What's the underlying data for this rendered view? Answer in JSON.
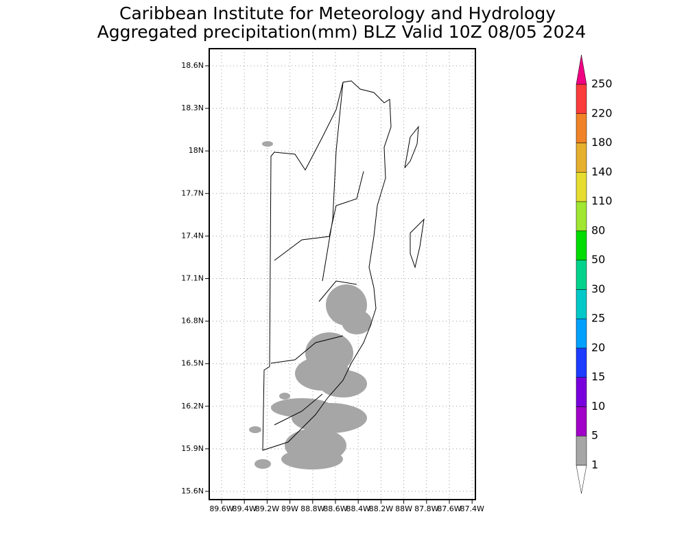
{
  "title": {
    "line1": "Caribbean Institute for Meteorology and Hydrology",
    "line2": "Aggregated precipitation(mm) BLZ Valid 10Z 08/05 2024"
  },
  "map": {
    "lat_labels": [
      "18.6N",
      "18.3N",
      "18N",
      "17.7N",
      "17.4N",
      "17.1N",
      "16.8N",
      "16.5N",
      "16.2N",
      "15.9N",
      "15.6N"
    ],
    "lon_labels": [
      "89.6W",
      "89.4W",
      "89.2W",
      "89W",
      "88.8W",
      "88.6W",
      "88.4W",
      "88.2W",
      "88W",
      "87.8W",
      "87.6W",
      "87.4W"
    ]
  },
  "colorbar": {
    "levels": [
      1,
      5,
      10,
      15,
      20,
      25,
      30,
      50,
      80,
      110,
      140,
      180,
      220,
      250
    ],
    "colors": [
      "#ffffff",
      "#a6a6a6",
      "#a000c8",
      "#7800dc",
      "#1e3cff",
      "#00a0ff",
      "#00c8c8",
      "#00d28c",
      "#00dc00",
      "#a0e632",
      "#e6dc32",
      "#e6af2d",
      "#f08228",
      "#fa3c3c",
      "#f00082"
    ]
  }
}
